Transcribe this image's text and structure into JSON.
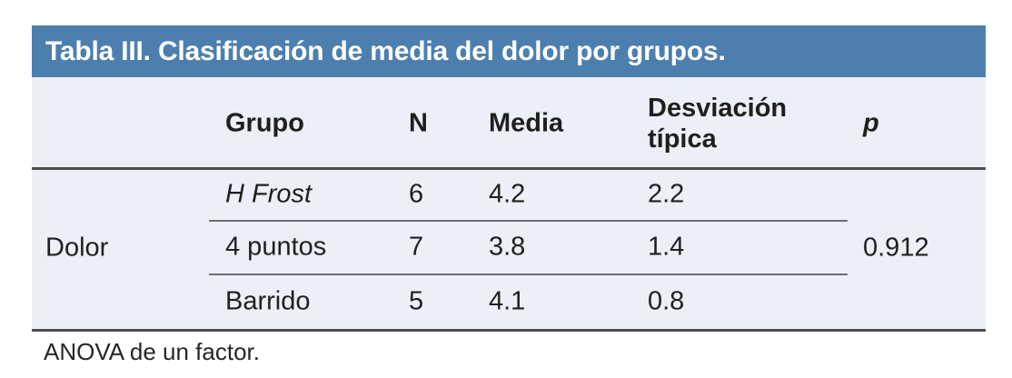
{
  "title": "Tabla III. Clasificación de media del dolor por grupos.",
  "colors": {
    "title_bar_bg": "#4c7fad",
    "title_text": "#ffffff",
    "body_bg": "#edeff7",
    "heavy_rule": "#4d4d4d",
    "row_separator": "#6e6e6e",
    "text": "#1f1f1f"
  },
  "table": {
    "row_label": "Dolor",
    "columns": {
      "grupo": "Grupo",
      "n": "N",
      "media": "Media",
      "desviacion": "Desviación típica",
      "p": "p"
    },
    "rows": [
      {
        "grupo": "H Frost",
        "n": "6",
        "media": "4.2",
        "desviacion": "2.2"
      },
      {
        "grupo": "4 puntos",
        "n": "7",
        "media": "3.8",
        "desviacion": "1.4"
      },
      {
        "grupo": "Barrido",
        "n": "5",
        "media": "4.1",
        "desviacion": "0.8"
      }
    ],
    "p_value": "0.912"
  },
  "footnote": "ANOVA de un factor.",
  "chart_data": {
    "type": "table",
    "title": "Tabla III. Clasificación de media del dolor por grupos.",
    "columns": [
      "Grupo",
      "N",
      "Media",
      "Desviación típica",
      "p"
    ],
    "row_group": "Dolor",
    "rows": [
      [
        "H Frost",
        6,
        4.2,
        2.2
      ],
      [
        "4 puntos",
        7,
        3.8,
        1.4
      ],
      [
        "Barrido",
        5,
        4.1,
        0.8
      ]
    ],
    "p_value": 0.912,
    "note": "ANOVA de un factor."
  }
}
